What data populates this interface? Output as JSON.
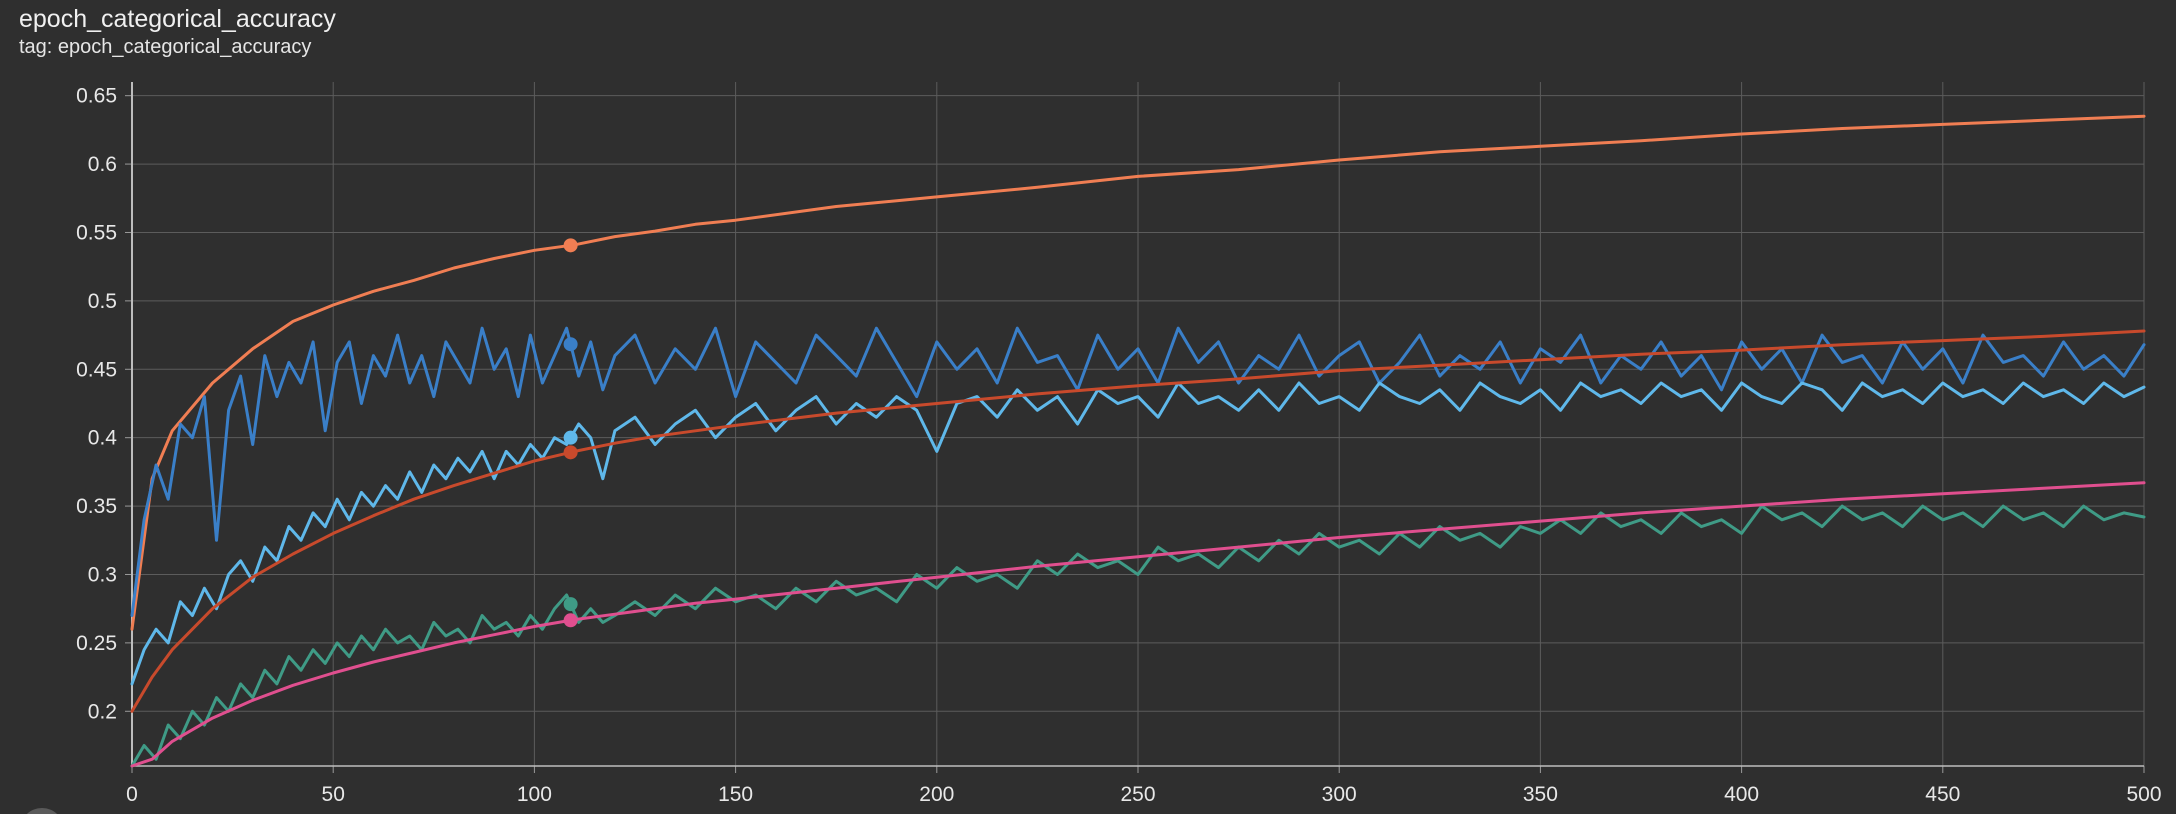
{
  "card": {
    "title": "epoch_categorical_accuracy",
    "subtitle": "tag: epoch_categorical_accuracy"
  },
  "chart_data": {
    "type": "line",
    "title": "epoch_categorical_accuracy",
    "xlabel": "",
    "ylabel": "",
    "xlim": [
      0,
      500
    ],
    "ylim": [
      0.16,
      0.66
    ],
    "xticks": [
      0,
      50,
      100,
      150,
      200,
      250,
      300,
      350,
      400,
      450,
      500
    ],
    "yticks": [
      0.2,
      0.25,
      0.3,
      0.35,
      0.4,
      0.45,
      0.5,
      0.55,
      0.6,
      0.65
    ],
    "ytick_labels": [
      "0.2",
      "0.25",
      "0.3",
      "0.35",
      "0.4",
      "0.45",
      "0.5",
      "0.55",
      "0.6",
      "0.65"
    ],
    "grid": true,
    "legend": "none",
    "hover_x": 109,
    "series": [
      {
        "color": "#f07e53",
        "x": [
          0,
          5,
          10,
          20,
          30,
          40,
          50,
          60,
          70,
          80,
          90,
          100,
          110,
          120,
          130,
          140,
          150,
          175,
          200,
          225,
          250,
          275,
          300,
          325,
          350,
          375,
          400,
          425,
          450,
          475,
          500
        ],
        "y": [
          0.26,
          0.37,
          0.405,
          0.44,
          0.465,
          0.485,
          0.497,
          0.507,
          0.515,
          0.524,
          0.531,
          0.537,
          0.541,
          0.547,
          0.551,
          0.556,
          0.559,
          0.569,
          0.576,
          0.583,
          0.591,
          0.596,
          0.603,
          0.609,
          0.613,
          0.617,
          0.622,
          0.626,
          0.629,
          0.632,
          0.635
        ]
      },
      {
        "color": "#3a7fc8",
        "x": [
          0,
          3,
          6,
          9,
          12,
          15,
          18,
          21,
          24,
          27,
          30,
          33,
          36,
          39,
          42,
          45,
          48,
          51,
          54,
          57,
          60,
          63,
          66,
          69,
          72,
          75,
          78,
          81,
          84,
          87,
          90,
          93,
          96,
          99,
          102,
          105,
          108,
          111,
          114,
          117,
          120,
          125,
          130,
          135,
          140,
          145,
          150,
          155,
          160,
          165,
          170,
          175,
          180,
          185,
          190,
          195,
          200,
          205,
          210,
          215,
          220,
          225,
          230,
          235,
          240,
          245,
          250,
          255,
          260,
          265,
          270,
          275,
          280,
          285,
          290,
          295,
          300,
          305,
          310,
          315,
          320,
          325,
          330,
          335,
          340,
          345,
          350,
          355,
          360,
          365,
          370,
          375,
          380,
          385,
          390,
          395,
          400,
          405,
          410,
          415,
          420,
          425,
          430,
          435,
          440,
          445,
          450,
          455,
          460,
          465,
          470,
          475,
          480,
          485,
          490,
          495,
          500
        ],
        "y": [
          0.27,
          0.34,
          0.38,
          0.355,
          0.41,
          0.4,
          0.43,
          0.325,
          0.42,
          0.445,
          0.395,
          0.46,
          0.43,
          0.455,
          0.44,
          0.47,
          0.405,
          0.455,
          0.47,
          0.425,
          0.46,
          0.445,
          0.475,
          0.44,
          0.46,
          0.43,
          0.47,
          0.455,
          0.44,
          0.48,
          0.45,
          0.465,
          0.43,
          0.475,
          0.44,
          0.46,
          0.48,
          0.445,
          0.47,
          0.435,
          0.46,
          0.475,
          0.44,
          0.465,
          0.45,
          0.48,
          0.43,
          0.47,
          0.455,
          0.44,
          0.475,
          0.46,
          0.445,
          0.48,
          0.455,
          0.43,
          0.47,
          0.45,
          0.465,
          0.44,
          0.48,
          0.455,
          0.46,
          0.435,
          0.475,
          0.45,
          0.465,
          0.44,
          0.48,
          0.455,
          0.47,
          0.44,
          0.46,
          0.45,
          0.475,
          0.445,
          0.46,
          0.47,
          0.44,
          0.455,
          0.475,
          0.445,
          0.46,
          0.45,
          0.47,
          0.44,
          0.465,
          0.455,
          0.475,
          0.44,
          0.46,
          0.45,
          0.47,
          0.445,
          0.46,
          0.435,
          0.47,
          0.45,
          0.465,
          0.44,
          0.475,
          0.455,
          0.46,
          0.44,
          0.47,
          0.45,
          0.465,
          0.44,
          0.475,
          0.455,
          0.46,
          0.445,
          0.47,
          0.45,
          0.46,
          0.445,
          0.468
        ]
      },
      {
        "color": "#5fb8ea",
        "x": [
          0,
          3,
          6,
          9,
          12,
          15,
          18,
          21,
          24,
          27,
          30,
          33,
          36,
          39,
          42,
          45,
          48,
          51,
          54,
          57,
          60,
          63,
          66,
          69,
          72,
          75,
          78,
          81,
          84,
          87,
          90,
          93,
          96,
          99,
          102,
          105,
          108,
          111,
          114,
          117,
          120,
          125,
          130,
          135,
          140,
          145,
          150,
          155,
          160,
          165,
          170,
          175,
          180,
          185,
          190,
          195,
          200,
          205,
          210,
          215,
          220,
          225,
          230,
          235,
          240,
          245,
          250,
          255,
          260,
          265,
          270,
          275,
          280,
          285,
          290,
          295,
          300,
          305,
          310,
          315,
          320,
          325,
          330,
          335,
          340,
          345,
          350,
          355,
          360,
          365,
          370,
          375,
          380,
          385,
          390,
          395,
          400,
          405,
          410,
          415,
          420,
          425,
          430,
          435,
          440,
          445,
          450,
          455,
          460,
          465,
          470,
          475,
          480,
          485,
          490,
          495,
          500
        ],
        "y": [
          0.22,
          0.245,
          0.26,
          0.25,
          0.28,
          0.27,
          0.29,
          0.275,
          0.3,
          0.31,
          0.295,
          0.32,
          0.31,
          0.335,
          0.325,
          0.345,
          0.335,
          0.355,
          0.34,
          0.36,
          0.35,
          0.365,
          0.355,
          0.375,
          0.36,
          0.38,
          0.37,
          0.385,
          0.375,
          0.39,
          0.37,
          0.39,
          0.38,
          0.395,
          0.385,
          0.4,
          0.395,
          0.41,
          0.4,
          0.37,
          0.405,
          0.415,
          0.395,
          0.41,
          0.42,
          0.4,
          0.415,
          0.425,
          0.405,
          0.42,
          0.43,
          0.41,
          0.425,
          0.415,
          0.43,
          0.42,
          0.39,
          0.425,
          0.43,
          0.415,
          0.435,
          0.42,
          0.43,
          0.41,
          0.435,
          0.425,
          0.43,
          0.415,
          0.44,
          0.425,
          0.43,
          0.42,
          0.435,
          0.42,
          0.44,
          0.425,
          0.43,
          0.42,
          0.44,
          0.43,
          0.425,
          0.435,
          0.42,
          0.44,
          0.43,
          0.425,
          0.435,
          0.42,
          0.44,
          0.43,
          0.435,
          0.425,
          0.44,
          0.43,
          0.435,
          0.42,
          0.44,
          0.43,
          0.425,
          0.44,
          0.435,
          0.42,
          0.44,
          0.43,
          0.435,
          0.425,
          0.44,
          0.43,
          0.435,
          0.425,
          0.44,
          0.43,
          0.435,
          0.425,
          0.44,
          0.43,
          0.437
        ]
      },
      {
        "color": "#c84a2c",
        "x": [
          0,
          5,
          10,
          20,
          30,
          40,
          50,
          60,
          70,
          80,
          90,
          100,
          110,
          120,
          130,
          140,
          150,
          175,
          200,
          225,
          250,
          275,
          300,
          325,
          350,
          375,
          400,
          425,
          450,
          475,
          500
        ],
        "y": [
          0.2,
          0.225,
          0.245,
          0.275,
          0.298,
          0.315,
          0.33,
          0.343,
          0.355,
          0.365,
          0.374,
          0.383,
          0.39,
          0.396,
          0.401,
          0.405,
          0.409,
          0.418,
          0.425,
          0.432,
          0.438,
          0.443,
          0.449,
          0.453,
          0.457,
          0.461,
          0.464,
          0.468,
          0.471,
          0.474,
          0.478
        ]
      },
      {
        "color": "#3f9b86",
        "x": [
          0,
          3,
          6,
          9,
          12,
          15,
          18,
          21,
          24,
          27,
          30,
          33,
          36,
          39,
          42,
          45,
          48,
          51,
          54,
          57,
          60,
          63,
          66,
          69,
          72,
          75,
          78,
          81,
          84,
          87,
          90,
          93,
          96,
          99,
          102,
          105,
          108,
          111,
          114,
          117,
          120,
          125,
          130,
          135,
          140,
          145,
          150,
          155,
          160,
          165,
          170,
          175,
          180,
          185,
          190,
          195,
          200,
          205,
          210,
          215,
          220,
          225,
          230,
          235,
          240,
          245,
          250,
          255,
          260,
          265,
          270,
          275,
          280,
          285,
          290,
          295,
          300,
          305,
          310,
          315,
          320,
          325,
          330,
          335,
          340,
          345,
          350,
          355,
          360,
          365,
          370,
          375,
          380,
          385,
          390,
          395,
          400,
          405,
          410,
          415,
          420,
          425,
          430,
          435,
          440,
          445,
          450,
          455,
          460,
          465,
          470,
          475,
          480,
          485,
          490,
          495,
          500
        ],
        "y": [
          0.16,
          0.175,
          0.165,
          0.19,
          0.18,
          0.2,
          0.19,
          0.21,
          0.2,
          0.22,
          0.21,
          0.23,
          0.22,
          0.24,
          0.23,
          0.245,
          0.235,
          0.25,
          0.24,
          0.255,
          0.245,
          0.26,
          0.25,
          0.255,
          0.245,
          0.265,
          0.255,
          0.26,
          0.25,
          0.27,
          0.26,
          0.265,
          0.255,
          0.27,
          0.26,
          0.275,
          0.285,
          0.265,
          0.275,
          0.265,
          0.27,
          0.28,
          0.27,
          0.285,
          0.275,
          0.29,
          0.28,
          0.285,
          0.275,
          0.29,
          0.28,
          0.295,
          0.285,
          0.29,
          0.28,
          0.3,
          0.29,
          0.305,
          0.295,
          0.3,
          0.29,
          0.31,
          0.3,
          0.315,
          0.305,
          0.31,
          0.3,
          0.32,
          0.31,
          0.315,
          0.305,
          0.32,
          0.31,
          0.325,
          0.315,
          0.33,
          0.32,
          0.325,
          0.315,
          0.33,
          0.32,
          0.335,
          0.325,
          0.33,
          0.32,
          0.335,
          0.33,
          0.34,
          0.33,
          0.345,
          0.335,
          0.34,
          0.33,
          0.345,
          0.335,
          0.34,
          0.33,
          0.35,
          0.34,
          0.345,
          0.335,
          0.35,
          0.34,
          0.345,
          0.335,
          0.35,
          0.34,
          0.345,
          0.335,
          0.35,
          0.34,
          0.345,
          0.335,
          0.35,
          0.34,
          0.345,
          0.342
        ]
      },
      {
        "color": "#e04f8f",
        "x": [
          0,
          5,
          10,
          20,
          30,
          40,
          50,
          60,
          70,
          80,
          90,
          100,
          110,
          120,
          130,
          140,
          150,
          175,
          200,
          225,
          250,
          275,
          300,
          325,
          350,
          375,
          400,
          425,
          450,
          475,
          500
        ],
        "y": [
          0.16,
          0.165,
          0.178,
          0.195,
          0.208,
          0.219,
          0.228,
          0.236,
          0.243,
          0.25,
          0.256,
          0.262,
          0.267,
          0.271,
          0.275,
          0.279,
          0.282,
          0.29,
          0.298,
          0.306,
          0.313,
          0.32,
          0.327,
          0.333,
          0.339,
          0.345,
          0.35,
          0.355,
          0.359,
          0.363,
          0.367
        ]
      }
    ]
  }
}
